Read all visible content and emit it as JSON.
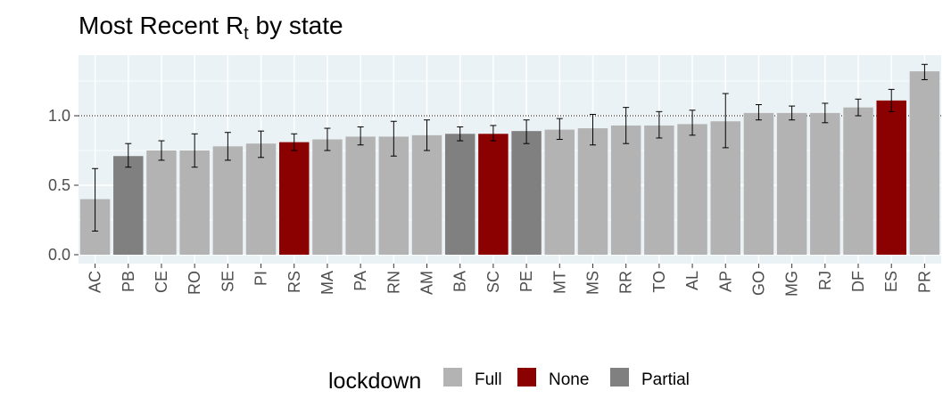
{
  "chart_data": {
    "type": "bar",
    "title": "Most Recent R",
    "title_subscript": "t",
    "title_suffix": " by state",
    "xlabel": "",
    "ylabel": "",
    "ylim": [
      0,
      1.38
    ],
    "yticks": [
      0.0,
      0.5,
      1.0
    ],
    "ytick_labels": [
      "0.0",
      "0.5",
      "1.0"
    ],
    "reference_line": 1.0,
    "categories": [
      "AC",
      "PB",
      "CE",
      "RO",
      "SE",
      "PI",
      "RS",
      "MA",
      "PA",
      "RN",
      "AM",
      "BA",
      "SC",
      "PE",
      "MT",
      "MS",
      "RR",
      "TO",
      "AL",
      "AP",
      "GO",
      "MG",
      "RJ",
      "DF",
      "ES",
      "PR"
    ],
    "values": [
      0.4,
      0.71,
      0.75,
      0.75,
      0.78,
      0.8,
      0.81,
      0.83,
      0.85,
      0.85,
      0.86,
      0.87,
      0.87,
      0.89,
      0.9,
      0.91,
      0.93,
      0.93,
      0.94,
      0.96,
      1.02,
      1.02,
      1.02,
      1.06,
      1.11,
      1.32
    ],
    "lower": [
      0.17,
      0.63,
      0.68,
      0.63,
      0.68,
      0.7,
      0.75,
      0.75,
      0.79,
      0.71,
      0.75,
      0.82,
      0.82,
      0.8,
      0.83,
      0.79,
      0.8,
      0.84,
      0.86,
      0.77,
      0.97,
      0.97,
      0.95,
      1.0,
      1.03,
      1.26
    ],
    "upper": [
      0.62,
      0.8,
      0.82,
      0.87,
      0.88,
      0.89,
      0.87,
      0.91,
      0.92,
      0.96,
      0.97,
      0.92,
      0.93,
      0.97,
      0.98,
      1.01,
      1.06,
      1.03,
      1.04,
      1.16,
      1.08,
      1.07,
      1.09,
      1.12,
      1.19,
      1.37
    ],
    "lockdown": [
      "Full",
      "Partial",
      "Full",
      "Full",
      "Full",
      "Full",
      "None",
      "Full",
      "Full",
      "Full",
      "Full",
      "Partial",
      "None",
      "Partial",
      "Full",
      "Full",
      "Full",
      "Full",
      "Full",
      "Full",
      "Full",
      "Full",
      "Full",
      "Full",
      "None",
      "Full"
    ],
    "legend": {
      "title": "lockdown",
      "position": "bottom",
      "entries": [
        {
          "label": "Full",
          "color": "#b3b3b3"
        },
        {
          "label": "None",
          "color": "#8b0000"
        },
        {
          "label": "Partial",
          "color": "#808080"
        }
      ]
    },
    "panel_background": "#ebf2f5",
    "grid": true
  }
}
